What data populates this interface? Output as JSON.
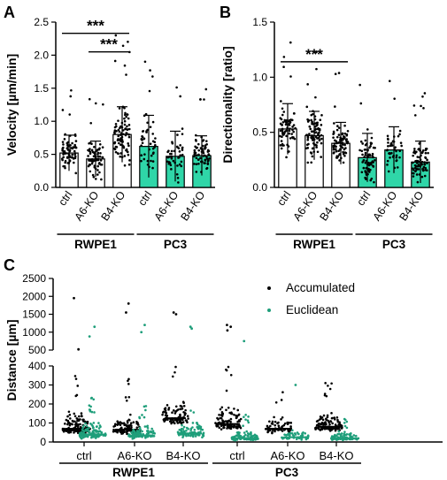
{
  "colors": {
    "teal": "#2fd6a8",
    "teal_dot": "#1e9e7a",
    "black": "#000000",
    "white": "#ffffff"
  },
  "chart_data": [
    {
      "panel": "A",
      "type": "bar",
      "ylabel": "Velocity [µm/min]",
      "ylim": [
        0,
        2.5
      ],
      "yticks": [
        "0.0",
        "0.5",
        "1.0",
        "1.5",
        "2.0",
        "2.5"
      ],
      "categories": [
        "ctrl",
        "A6-KO",
        "B4-KO",
        "ctrl",
        "A6-KO",
        "B4-KO"
      ],
      "groups": [
        {
          "label": "RWPE1",
          "from": 0,
          "to": 2
        },
        {
          "label": "PC3",
          "from": 3,
          "to": 5
        }
      ],
      "values": [
        0.52,
        0.43,
        0.8,
        0.62,
        0.47,
        0.48
      ],
      "sd": [
        0.27,
        0.27,
        0.42,
        0.47,
        0.38,
        0.3
      ],
      "fills": [
        "white",
        "white",
        "white",
        "teal",
        "teal",
        "teal"
      ],
      "n_points": [
        70,
        70,
        90,
        45,
        45,
        70
      ],
      "significance": [
        {
          "from": 0,
          "to": 2,
          "label": "***",
          "y": 2.33
        },
        {
          "from": 1,
          "to": 2,
          "label": "***",
          "y": 2.05
        }
      ]
    },
    {
      "panel": "B",
      "type": "bar",
      "ylabel": "Directionality [ratio]",
      "ylim": [
        0,
        1.5
      ],
      "yticks": [
        "0.0",
        "0.5",
        "1.0",
        "1.5"
      ],
      "categories": [
        "ctrl",
        "A6-KO",
        "B4-KO",
        "ctrl",
        "A6-KO",
        "B4-KO"
      ],
      "groups": [
        {
          "label": "RWPE1",
          "from": 0,
          "to": 2
        },
        {
          "label": "PC3",
          "from": 3,
          "to": 5
        }
      ],
      "values": [
        0.53,
        0.47,
        0.4,
        0.27,
        0.34,
        0.23
      ],
      "sd": [
        0.23,
        0.22,
        0.19,
        0.22,
        0.21,
        0.19
      ],
      "fills": [
        "white",
        "white",
        "white",
        "teal",
        "teal",
        "teal"
      ],
      "n_points": [
        70,
        90,
        80,
        70,
        45,
        80
      ],
      "significance": [
        {
          "from": 0,
          "to": 2,
          "label": "***",
          "y": 1.14
        }
      ]
    },
    {
      "panel": "C",
      "type": "scatter",
      "ylabel": "Distance [µm]",
      "broken_axis": true,
      "lower_ylim": [
        0,
        400
      ],
      "upper_ylim": [
        500,
        2500
      ],
      "lower_yticks": [
        "0",
        "100",
        "200",
        "300",
        "400"
      ],
      "upper_yticks": [
        "500",
        "1000",
        "1500",
        "2000",
        "2500"
      ],
      "categories": [
        "ctrl",
        "A6-KO",
        "B4-KO",
        "ctrl",
        "A6-KO",
        "B4-KO"
      ],
      "groups": [
        {
          "label": "RWPE1",
          "from": 0,
          "to": 2
        },
        {
          "label": "PC3",
          "from": 3,
          "to": 5
        }
      ],
      "legend": [
        {
          "name": "Accumulated",
          "color": "black"
        },
        {
          "name": "Euclidean",
          "color": "teal"
        }
      ],
      "series": [
        {
          "name": "Accumulated",
          "medians": [
            70,
            65,
            125,
            95,
            70,
            80
          ],
          "spread": [
            80,
            75,
            95,
            85,
            70,
            65
          ],
          "n_points": [
            120,
            110,
            90,
            120,
            70,
            110
          ],
          "outliers": [
            [
              1950,
              520
            ],
            [
              1800,
              1550
            ],
            [
              1550,
              1500
            ],
            [
              1200,
              1150,
              1050
            ],
            [],
            []
          ]
        },
        {
          "name": "Euclidean",
          "medians": [
            40,
            35,
            45,
            20,
            25,
            20
          ],
          "spread": [
            55,
            45,
            55,
            35,
            35,
            30
          ],
          "n_points": [
            130,
            100,
            90,
            100,
            60,
            90
          ],
          "outliers": [
            [
              1150,
              880
            ],
            [
              1200,
              1000
            ],
            [
              1150,
              1100
            ],
            [
              750
            ],
            [
              300
            ],
            []
          ]
        }
      ]
    }
  ],
  "panel_labels": [
    "A",
    "B",
    "C"
  ]
}
